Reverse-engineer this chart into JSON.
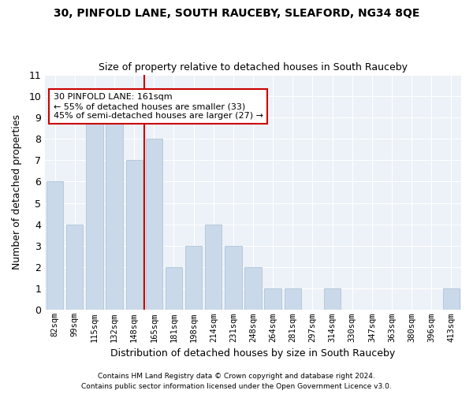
{
  "title1": "30, PINFOLD LANE, SOUTH RAUCEBY, SLEAFORD, NG34 8QE",
  "title2": "Size of property relative to detached houses in South Rauceby",
  "xlabel": "Distribution of detached houses by size in South Rauceby",
  "ylabel": "Number of detached properties",
  "categories": [
    "82sqm",
    "99sqm",
    "115sqm",
    "132sqm",
    "148sqm",
    "165sqm",
    "181sqm",
    "198sqm",
    "214sqm",
    "231sqm",
    "248sqm",
    "264sqm",
    "281sqm",
    "297sqm",
    "314sqm",
    "330sqm",
    "347sqm",
    "363sqm",
    "380sqm",
    "396sqm",
    "413sqm"
  ],
  "values": [
    6,
    4,
    9,
    9,
    7,
    8,
    2,
    3,
    4,
    3,
    2,
    1,
    1,
    0,
    1,
    0,
    0,
    0,
    0,
    0,
    1
  ],
  "bar_color": "#c9d9ea",
  "bar_edgecolor": "#afc4d6",
  "vline_x": 4.5,
  "annotation_text": "30 PINFOLD LANE: 161sqm\n← 55% of detached houses are smaller (33)\n45% of semi-detached houses are larger (27) →",
  "annotation_box_facecolor": "#ffffff",
  "annotation_box_edgecolor": "#cc0000",
  "vline_color": "#cc0000",
  "ylim": [
    0,
    11
  ],
  "yticks": [
    0,
    1,
    2,
    3,
    4,
    5,
    6,
    7,
    8,
    9,
    10,
    11
  ],
  "footer1": "Contains HM Land Registry data © Crown copyright and database right 2024.",
  "footer2": "Contains public sector information licensed under the Open Government Licence v3.0.",
  "bg_color": "#ffffff",
  "plot_bg_color": "#edf2f8",
  "grid_color": "#ffffff"
}
